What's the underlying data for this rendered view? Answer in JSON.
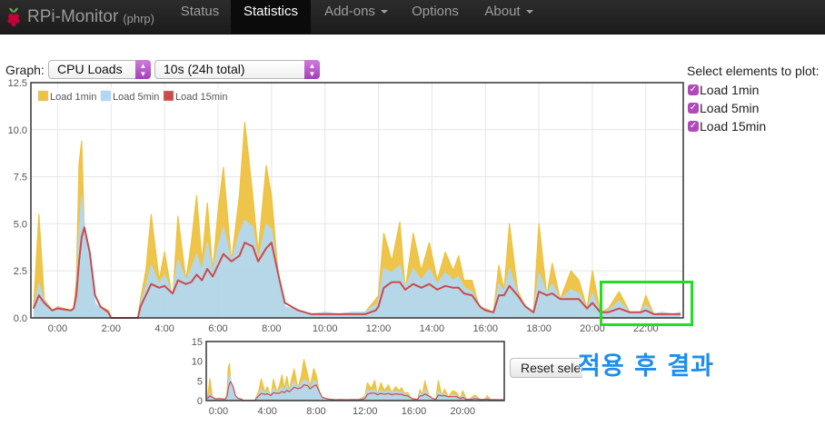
{
  "app": {
    "name": "RPi-Monitor",
    "host": "(phrp)"
  },
  "nav": {
    "status": "Status",
    "statistics": "Statistics",
    "addons": "Add-ons",
    "options": "Options",
    "about": "About"
  },
  "controls": {
    "graph_label": "Graph:",
    "graph_select": "CPU Loads",
    "range_select": "10s (24h total)",
    "select_title": "Select elements to plot:",
    "checkboxes": [
      {
        "label": "Load 1min",
        "checked": true
      },
      {
        "label": "Load 5min",
        "checked": true
      },
      {
        "label": "Load 15min",
        "checked": true
      }
    ],
    "reset_button": "Reset selection"
  },
  "overlay": {
    "caption": "적용 후 결과",
    "highlight_color": "#22dd22",
    "caption_color": "#1f8ee8"
  },
  "chart_data": [
    {
      "type": "line",
      "ylim": [
        0,
        12.5
      ],
      "y_ticks": [
        "0.0",
        "2.5",
        "5.0",
        "7.5",
        "10.0",
        "12.5"
      ],
      "x_tick_labels": [
        "0:00",
        "2:00",
        "4:00",
        "6:00",
        "8:00",
        "10:00",
        "12:00",
        "14:00",
        "16:00",
        "18:00",
        "20:00",
        "22:00"
      ],
      "x_tick_hours": [
        0,
        2,
        4,
        6,
        8,
        10,
        12,
        14,
        16,
        18,
        20,
        22
      ],
      "xlim_hours": [
        -1,
        23.4
      ],
      "legend_position": "top-left",
      "series": [
        {
          "name": "Load 1min",
          "color": "#edc240",
          "x": [
            -0.9,
            -0.7,
            -0.5,
            -0.2,
            0,
            0.5,
            0.6,
            0.7,
            0.8,
            0.9,
            1,
            1.2,
            1.4,
            1.6,
            1.9,
            2,
            2.5,
            3,
            3.1,
            3.3,
            3.5,
            3.8,
            4,
            4.3,
            4.5,
            4.8,
            5,
            5.2,
            5.4,
            5.6,
            5.8,
            6,
            6.2,
            6.5,
            6.8,
            7,
            7.3,
            7.5,
            7.8,
            8,
            8.3,
            8.5,
            9,
            9.5,
            10,
            10.5,
            11,
            11.5,
            11.9,
            12,
            12.2,
            12.5,
            12.8,
            13,
            13.3,
            13.6,
            13.9,
            14.2,
            14.5,
            14.8,
            15,
            15.2,
            15.5,
            15.8,
            16,
            16.3,
            16.5,
            16.7,
            16.9,
            17.2,
            17.5,
            17.8,
            18,
            18.3,
            18.5,
            18.8,
            19.2,
            19.5,
            19.8,
            20,
            20.3,
            20.6,
            21,
            21.4,
            21.8,
            22,
            22.3,
            22.6,
            23,
            23.3
          ],
          "y": [
            0.5,
            5.5,
            1.0,
            0.4,
            0.6,
            0.4,
            0.5,
            2.0,
            8.2,
            9.4,
            4.5,
            2.2,
            0.5,
            0.6,
            0.4,
            0.0,
            0.0,
            0.0,
            1.0,
            2.5,
            5.5,
            2.0,
            3.5,
            1.0,
            5.4,
            2.0,
            4.0,
            6.5,
            3.0,
            6.1,
            2.5,
            5.7,
            8.0,
            3.0,
            6.5,
            10.4,
            6.5,
            3.5,
            8.1,
            6.5,
            1.5,
            0.5,
            0.4,
            0.2,
            0.3,
            0.2,
            0.3,
            0.3,
            1.0,
            1.2,
            4.5,
            3.0,
            5.1,
            1.5,
            4.5,
            2.5,
            4.0,
            2.0,
            3.5,
            2.5,
            3.3,
            2.0,
            2.0,
            0.4,
            0.5,
            0.3,
            2.8,
            1.5,
            5.0,
            1.5,
            0.5,
            0.3,
            5.0,
            1.2,
            2.9,
            1.0,
            2.5,
            2.0,
            0.5,
            2.5,
            0.3,
            0.5,
            1.4,
            0.3,
            0.3,
            1.2,
            0.2,
            0.3,
            0.2,
            0.3
          ]
        },
        {
          "name": "Load 5min",
          "color": "#afd8f8",
          "x": [
            -0.9,
            -0.7,
            -0.5,
            -0.2,
            0,
            0.5,
            0.6,
            0.7,
            0.8,
            0.9,
            1,
            1.2,
            1.4,
            1.6,
            1.9,
            2,
            2.5,
            3,
            3.1,
            3.3,
            3.5,
            3.8,
            4,
            4.3,
            4.5,
            4.8,
            5,
            5.2,
            5.4,
            5.6,
            5.8,
            6,
            6.2,
            6.5,
            6.8,
            7,
            7.3,
            7.5,
            7.8,
            8,
            8.3,
            8.5,
            9,
            9.5,
            10,
            10.5,
            11,
            11.5,
            11.9,
            12,
            12.2,
            12.5,
            12.8,
            13,
            13.3,
            13.6,
            13.9,
            14.2,
            14.5,
            14.8,
            15,
            15.2,
            15.5,
            15.8,
            16,
            16.3,
            16.5,
            16.7,
            16.9,
            17.2,
            17.5,
            17.8,
            18,
            18.3,
            18.5,
            18.8,
            19.2,
            19.5,
            19.8,
            20,
            20.3,
            20.6,
            21,
            21.4,
            21.8,
            22,
            22.3,
            22.6,
            23,
            23.3
          ],
          "y": [
            0.5,
            1.8,
            0.9,
            0.4,
            0.5,
            0.4,
            0.5,
            1.5,
            4.5,
            6.5,
            5.0,
            3.0,
            0.8,
            0.5,
            0.3,
            0.0,
            0.0,
            0.0,
            0.8,
            1.6,
            2.8,
            1.8,
            2.3,
            1.2,
            3.1,
            2.0,
            2.6,
            3.4,
            2.5,
            4.0,
            2.4,
            3.8,
            4.8,
            3.0,
            4.5,
            5.2,
            4.8,
            3.0,
            5.0,
            4.7,
            1.8,
            0.6,
            0.4,
            0.2,
            0.3,
            0.2,
            0.3,
            0.3,
            0.7,
            0.9,
            2.6,
            2.4,
            2.8,
            1.6,
            2.6,
            2.0,
            2.6,
            1.8,
            2.4,
            2.0,
            2.2,
            1.6,
            1.4,
            0.5,
            0.4,
            0.3,
            1.8,
            1.4,
            2.6,
            1.3,
            0.5,
            0.3,
            2.4,
            1.3,
            1.8,
            1.0,
            1.5,
            1.3,
            0.5,
            1.3,
            0.3,
            0.4,
            0.9,
            0.3,
            0.3,
            0.7,
            0.2,
            0.3,
            0.2,
            0.3
          ]
        },
        {
          "name": "Load 15min",
          "color": "#cb4b4b",
          "x": [
            -0.9,
            -0.7,
            -0.5,
            -0.2,
            0,
            0.5,
            0.6,
            0.7,
            0.8,
            0.9,
            1,
            1.2,
            1.4,
            1.6,
            1.9,
            2,
            2.5,
            3,
            3.1,
            3.3,
            3.5,
            3.8,
            4,
            4.3,
            4.5,
            4.8,
            5,
            5.2,
            5.4,
            5.6,
            5.8,
            6,
            6.2,
            6.5,
            6.8,
            7,
            7.3,
            7.5,
            7.8,
            8,
            8.3,
            8.5,
            9,
            9.5,
            10,
            10.5,
            11,
            11.5,
            11.9,
            12,
            12.2,
            12.5,
            12.8,
            13,
            13.3,
            13.6,
            13.9,
            14.2,
            14.5,
            14.8,
            15,
            15.2,
            15.5,
            15.8,
            16,
            16.3,
            16.5,
            16.7,
            16.9,
            17.2,
            17.5,
            17.8,
            18,
            18.3,
            18.5,
            18.8,
            19.2,
            19.5,
            19.8,
            20,
            20.3,
            20.6,
            21,
            21.4,
            21.8,
            22,
            22.3,
            22.6,
            23,
            23.3
          ],
          "y": [
            0.5,
            1.2,
            0.8,
            0.4,
            0.5,
            0.4,
            0.5,
            1.2,
            3.0,
            4.3,
            4.8,
            3.5,
            1.2,
            0.6,
            0.3,
            0.0,
            0.0,
            0.0,
            0.6,
            1.2,
            1.8,
            1.6,
            1.7,
            1.3,
            2.0,
            1.8,
            1.9,
            2.3,
            2.0,
            2.6,
            2.2,
            2.8,
            3.4,
            3.0,
            3.3,
            4.0,
            3.8,
            3.0,
            3.7,
            4.0,
            2.0,
            0.8,
            0.4,
            0.2,
            0.2,
            0.2,
            0.2,
            0.2,
            0.4,
            0.6,
            1.6,
            1.9,
            1.9,
            1.5,
            1.8,
            1.6,
            1.8,
            1.5,
            1.7,
            1.6,
            1.6,
            1.3,
            1.2,
            0.6,
            0.4,
            0.3,
            1.2,
            1.2,
            1.7,
            1.2,
            0.6,
            0.3,
            1.4,
            1.2,
            1.3,
            1.0,
            1.0,
            1.0,
            0.5,
            0.8,
            0.3,
            0.3,
            0.5,
            0.3,
            0.3,
            0.4,
            0.2,
            0.2,
            0.2,
            0.2
          ]
        }
      ]
    },
    {
      "type": "line",
      "ylim": [
        0,
        15
      ],
      "y_ticks": [
        "0",
        "5",
        "10",
        "15"
      ],
      "x_tick_labels": [
        "0:00",
        "4:00",
        "8:00",
        "12:00",
        "16:00",
        "20:00"
      ],
      "x_tick_hours": [
        0,
        4,
        8,
        12,
        16,
        20
      ],
      "xlim_hours": [
        -1,
        23.4
      ],
      "series_ref": "same as main chart"
    }
  ]
}
